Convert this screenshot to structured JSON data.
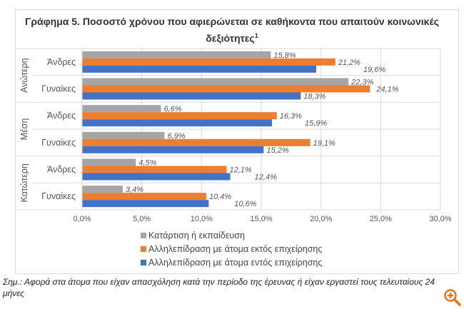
{
  "chart_data": {
    "type": "bar",
    "orientation": "horizontal",
    "title": "Γράφημα 5. Ποσοστό χρόνου που αφιερώνεται  σε καθήκοντα που απαιτούν κοινωνικές δεξιότητες",
    "title_sup": "1",
    "groups": [
      {
        "name": "Ανώτερη",
        "categories": [
          "Άνδρες",
          "Γυναίκες"
        ]
      },
      {
        "name": "Μέση",
        "categories": [
          "Άνδρες",
          "Γυναίκες"
        ]
      },
      {
        "name": "Κατώτερη",
        "categories": [
          "Άνδρες",
          "Γυναίκες"
        ]
      }
    ],
    "series": [
      {
        "name": "Κατάρτιση ή εκπαίδευση",
        "color": "#a5a5a5",
        "values": [
          15.8,
          22.3,
          6.6,
          6.9,
          4.5,
          3.4
        ]
      },
      {
        "name": "Αλληλεπίδραση με άτομα εκτός επιχείρησης",
        "color": "#ed7d31",
        "values": [
          21.2,
          24.1,
          16.3,
          19.1,
          12.1,
          10.4
        ]
      },
      {
        "name": "Αλληλεπίδραση με άτομα εντός επιχείρησης",
        "color": "#4472c4",
        "values": [
          19.6,
          18.3,
          15.9,
          15.2,
          12.4,
          10.6
        ]
      }
    ],
    "xlim": [
      0,
      30
    ],
    "xticks": [
      "0,0%",
      "5,0%",
      "10,0%",
      "15,0%",
      "20,0%",
      "25,0%",
      "30,0%"
    ],
    "grid": true,
    "legend": "bottom"
  },
  "note": "Σημ.: Αφορά στα άτομα που είχαν απασχόληση κατά την περίοδο της έρευνας ή είχαν εργαστεί τους τελευταίους 24 μήνες",
  "zoom_icon": "zoom-in-icon"
}
